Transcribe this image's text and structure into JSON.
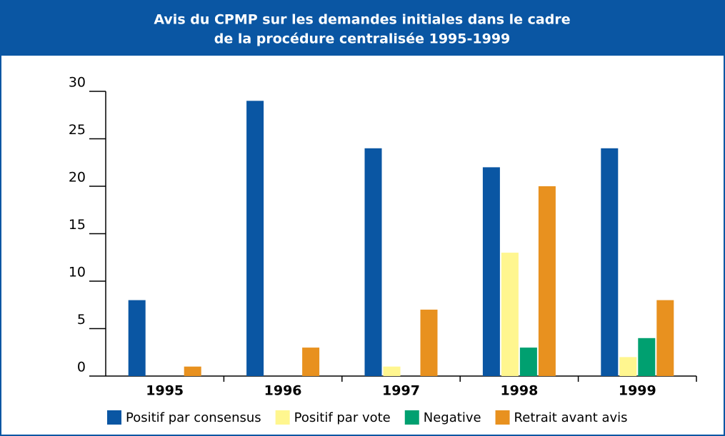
{
  "chart_data": {
    "type": "bar",
    "title": [
      "Avis du CPMP sur les demandes initiales dans le cadre",
      "de la procédure centralisée 1995-1999"
    ],
    "categories": [
      "1995",
      "1996",
      "1997",
      "1998",
      "1999"
    ],
    "series": [
      {
        "name": "Positif par consensus",
        "color": "#0a56a3",
        "values": [
          8,
          29,
          24,
          22,
          24
        ]
      },
      {
        "name": "Positif par vote",
        "color": "#fff68f",
        "values": [
          0,
          0,
          1,
          13,
          2
        ]
      },
      {
        "name": "Negative",
        "color": "#00a070",
        "values": [
          0,
          0,
          0,
          3,
          4
        ]
      },
      {
        "name": "Retrait avant avis",
        "color": "#e8911f",
        "values": [
          1,
          3,
          7,
          20,
          8
        ]
      }
    ],
    "ylim": [
      0,
      30
    ],
    "yticks": [
      0,
      5,
      10,
      15,
      20,
      25,
      30
    ],
    "grid": false
  }
}
